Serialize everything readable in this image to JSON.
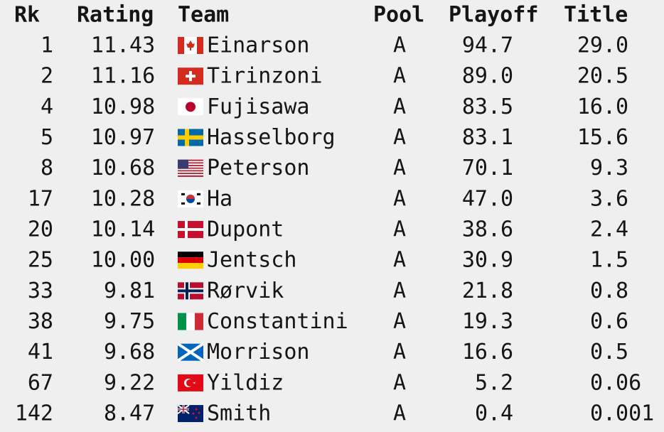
{
  "table": {
    "columns": [
      "Rk",
      "Rating",
      "Team",
      "Pool",
      "Playoff",
      "Title"
    ],
    "rows": [
      [
        "1",
        "11.43",
        "Einarson",
        "A",
        "94.7",
        "29.0"
      ],
      [
        "2",
        "11.16",
        "Tirinzoni",
        "A",
        "89.0",
        "20.5"
      ],
      [
        "4",
        "10.98",
        "Fujisawa",
        "A",
        "83.5",
        "16.0"
      ],
      [
        "5",
        "10.97",
        "Hasselborg",
        "A",
        "83.1",
        "15.6"
      ],
      [
        "8",
        "10.68",
        "Peterson",
        "A",
        "70.1",
        "9.3"
      ],
      [
        "17",
        "10.28",
        "Ha",
        "A",
        "47.0",
        "3.6"
      ],
      [
        "20",
        "10.14",
        "Dupont",
        "A",
        "38.6",
        "2.4"
      ],
      [
        "25",
        "10.00",
        "Jentsch",
        "A",
        "30.9",
        "1.5"
      ],
      [
        "33",
        "9.81",
        "Rørvik",
        "A",
        "21.8",
        "0.8"
      ],
      [
        "38",
        "9.75",
        "Constantini",
        "A",
        "19.3",
        "0.6"
      ],
      [
        "41",
        "9.68",
        "Morrison",
        "A",
        "16.6",
        "0.5"
      ],
      [
        "67",
        "9.22",
        "Yildiz",
        "A",
        "5.2",
        "0.06"
      ],
      [
        "142",
        "8.47",
        "Smith",
        "A",
        "0.4",
        "0.001"
      ]
    ]
  }
}
